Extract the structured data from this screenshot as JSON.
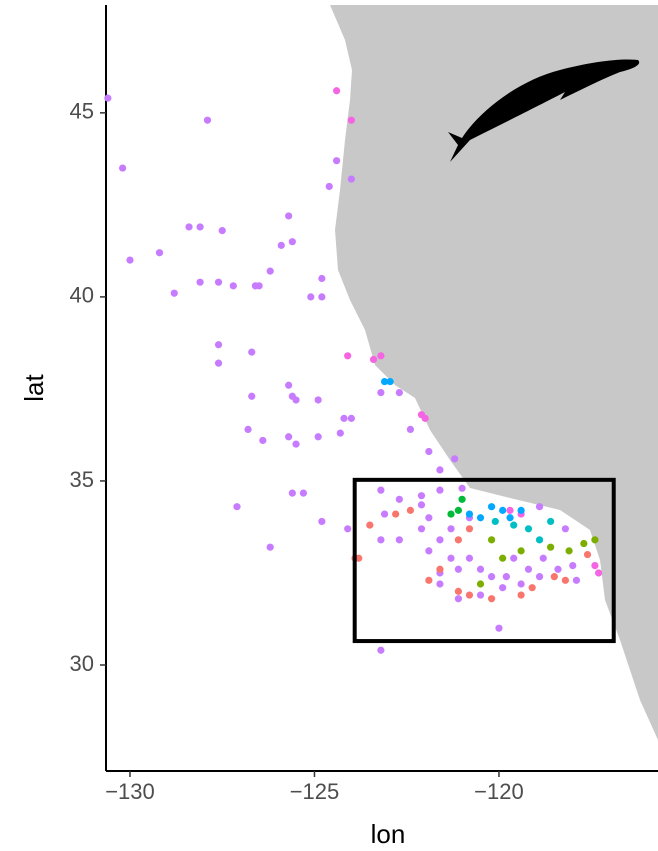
{
  "chart_data": {
    "type": "scatter",
    "x_label": "lon",
    "y_label": "lat",
    "xlim": [
      -130.65,
      -115.69
    ],
    "ylim": [
      27.12,
      47.93
    ],
    "xticks": [
      {
        "value": -130,
        "label": "−130"
      },
      {
        "value": -125,
        "label": "−125"
      },
      {
        "value": -120,
        "label": "−120"
      }
    ],
    "yticks": [
      30,
      35,
      40,
      45
    ],
    "grid": false,
    "box": {
      "x": [
        -123.91,
        -116.89
      ],
      "y": [
        30.65,
        35.03
      ]
    },
    "series": [
      {
        "color": "#C77CFF",
        "x": [
          -130.6,
          -127.9,
          -130.2,
          -130.0,
          -129.2,
          -128.4,
          -128.1,
          -127.5,
          -128.8,
          -128.1,
          -127.6,
          -127.2,
          -126.6,
          -126.5,
          -126.2,
          -125.9,
          -125.6,
          -125.7,
          -125.1,
          -124.8,
          -124.8,
          -127.6,
          -127.6,
          -126.7,
          -125.7,
          -125.6,
          -125.5,
          -126.7,
          -126.8,
          -126.4,
          -125.7,
          -125.5,
          -124.9,
          -124.9,
          -124.2,
          -124.0,
          -124.3,
          -127.1,
          -126.2,
          -125.6,
          -125.3,
          -124.8,
          -124.1,
          -123.2,
          -120.0,
          -124.6,
          -124.4,
          -124.0,
          -123.2,
          -122.7,
          -122.4,
          -121.9,
          -121.6,
          -121.2,
          -123.2,
          -122.7,
          -122.1,
          -121.6,
          -121.0,
          -122.1,
          -123.1,
          -123.2,
          -122.7,
          -122.1,
          -121.9,
          -121.6,
          -121.3,
          -121.6,
          -121.1,
          -120.8,
          -120.5,
          -120.2,
          -119.8,
          -119.6,
          -119.2,
          -118.9,
          -118.8,
          -118.4,
          -118.0,
          -117.9,
          -119.4,
          -119.9,
          -120.5,
          -121.1,
          -121.6,
          -121.9,
          -121.3,
          -120.8,
          -118.9,
          -118.2
        ],
        "y": [
          45.4,
          44.8,
          43.5,
          41.0,
          41.2,
          41.9,
          41.9,
          41.8,
          40.1,
          40.4,
          40.4,
          40.3,
          40.3,
          40.3,
          40.7,
          41.4,
          41.5,
          42.2,
          40.0,
          40.5,
          40.0,
          38.7,
          38.2,
          38.5,
          37.6,
          37.3,
          37.2,
          37.3,
          36.4,
          36.1,
          36.2,
          36.0,
          37.2,
          36.2,
          36.7,
          36.7,
          36.3,
          34.3,
          33.2,
          34.67,
          34.67,
          33.9,
          33.7,
          30.4,
          31.0,
          43.0,
          43.7,
          43.2,
          37.4,
          37.4,
          36.4,
          35.8,
          35.3,
          35.6,
          34.75,
          34.5,
          34.6,
          34.75,
          34.8,
          34.35,
          34.1,
          33.4,
          33.4,
          33.7,
          33.1,
          33.4,
          32.9,
          32.5,
          32.6,
          32.9,
          32.6,
          32.4,
          32.4,
          32.9,
          32.6,
          32.4,
          32.9,
          32.6,
          32.7,
          32.3,
          32.2,
          32.1,
          31.9,
          31.8,
          32.2,
          34.0,
          33.7,
          34.0,
          34.3,
          33.7
        ]
      },
      {
        "color": "#F564E3",
        "x": [
          -124.0,
          -124.4,
          -123.4,
          -123.2,
          -122.1,
          -122.0,
          -119.7,
          -119.4,
          -117.4,
          -117.3,
          -124.1
        ],
        "y": [
          44.8,
          45.6,
          38.3,
          38.4,
          36.8,
          36.7,
          34.2,
          34.1,
          32.7,
          32.5,
          38.4
        ]
      },
      {
        "color": "#00A9FF",
        "x": [
          -123.1,
          -122.95,
          -120.8,
          -120.5,
          -120.2,
          -119.9,
          -119.7,
          -119.4
        ],
        "y": [
          37.7,
          37.7,
          34.1,
          34.0,
          34.3,
          34.2,
          34.0,
          34.2
        ]
      },
      {
        "color": "#00BFC4",
        "x": [
          -120.1,
          -119.6,
          -119.2,
          -118.9,
          -118.6
        ],
        "y": [
          33.9,
          33.8,
          33.7,
          33.4,
          33.9
        ]
      },
      {
        "color": "#00BA38",
        "x": [
          -121.3,
          -121.1,
          -121.0
        ],
        "y": [
          34.1,
          34.2,
          34.5
        ]
      },
      {
        "color": "#7CAE00",
        "x": [
          -120.2,
          -119.9,
          -118.6,
          -118.1,
          -117.7,
          -119.4,
          -120.5,
          -117.4
        ],
        "y": [
          33.4,
          32.9,
          33.2,
          33.1,
          33.3,
          33.1,
          32.2,
          33.4
        ]
      },
      {
        "color": "#F8766D",
        "x": [
          -123.9,
          -123.8,
          -123.5,
          -122.8,
          -121.9,
          -121.6,
          -121.1,
          -120.8,
          -120.2,
          -119.4,
          -119.1,
          -118.5,
          -118.2,
          -117.6,
          -122.4,
          -121.1,
          -120.8
        ],
        "y": [
          32.9,
          32.9,
          33.8,
          34.1,
          32.3,
          32.6,
          32.0,
          31.9,
          31.8,
          31.9,
          32.1,
          32.4,
          32.3,
          33.0,
          34.2,
          33.4,
          33.7
        ]
      }
    ]
  }
}
